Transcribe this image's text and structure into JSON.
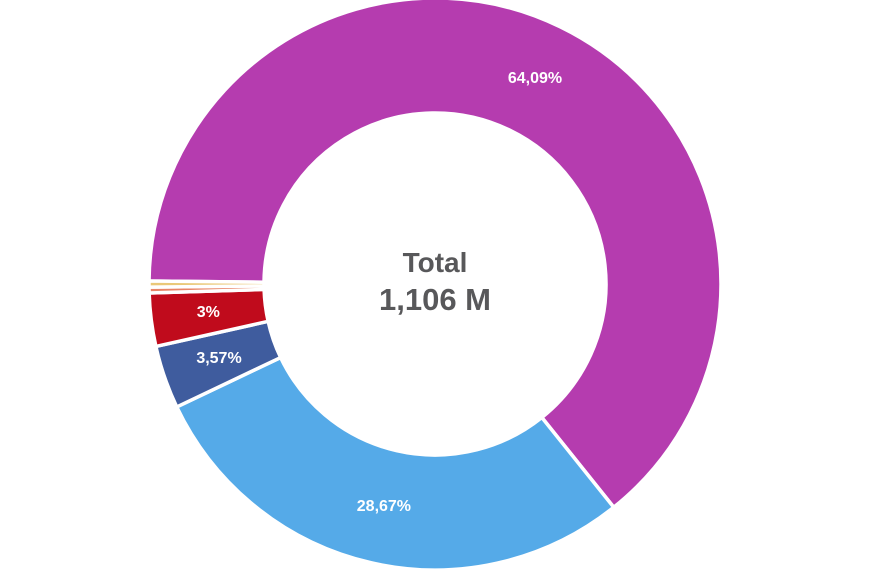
{
  "page": {
    "background": "#ffffff"
  },
  "chart_data": {
    "type": "pie",
    "subtype": "donut",
    "title": "",
    "center_label": {
      "title": "Total",
      "value": "1,106 M"
    },
    "slices": [
      {
        "label": "64,09%",
        "value": 64.09,
        "color": "#b53caf"
      },
      {
        "label": "28,67%",
        "value": 28.67,
        "color": "#55aae8"
      },
      {
        "label": "3,57%",
        "value": 3.57,
        "color": "#3f5c9e"
      },
      {
        "label": "3%",
        "value": 3.0,
        "color": "#c00b1c"
      },
      {
        "label": "",
        "value": 0.33,
        "color": "#e88468"
      },
      {
        "label": "",
        "value": 0.34,
        "color": "#eac878"
      }
    ],
    "layout": {
      "start_angle_deg": 270.6,
      "direction": "clockwise",
      "inner_radius_pct": 60,
      "legend": "none",
      "slice_border_color": "#ffffff"
    },
    "label_color": "#ffffff",
    "center_text_color": "#58585a"
  }
}
